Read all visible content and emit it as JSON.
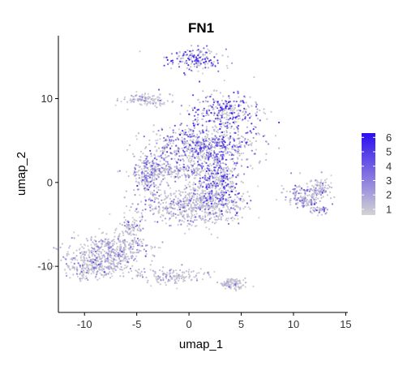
{
  "chart_data": {
    "type": "scatter",
    "title": "FN1",
    "xlabel": "umap_1",
    "ylabel": "umap_2",
    "xlim": [
      -12.5,
      15.2
    ],
    "ylim": [
      -15.5,
      17.5
    ],
    "x_ticks": [
      -10,
      -5,
      0,
      5,
      10,
      15
    ],
    "y_ticks": [
      -10,
      0,
      10
    ],
    "x_tick_labels": [
      "-10",
      "-5",
      "0",
      "5",
      "10",
      "15"
    ],
    "y_tick_labels": [
      "-10",
      "0",
      "10"
    ],
    "grid": false,
    "legend": {
      "position": "right",
      "min": 0.6,
      "max": 6.3,
      "ticks": [
        1,
        2,
        3,
        4,
        5,
        6
      ],
      "tick_labels": [
        "1",
        "2",
        "3",
        "4",
        "5",
        "6"
      ],
      "low_color": "#d3d3d3",
      "high_color": "#2b0ef0"
    },
    "clusters": [
      {
        "cx": 0.6,
        "cy": 14.7,
        "rx": 2.3,
        "ry": 1.2,
        "n": 180,
        "expr": 4.4
      },
      {
        "cx": -4.2,
        "cy": 9.9,
        "rx": 2.2,
        "ry": 0.6,
        "n": 120,
        "expr": 1.1
      },
      {
        "cx": 3.5,
        "cy": 8.4,
        "rx": 3.0,
        "ry": 2.2,
        "n": 320,
        "expr": 4.2
      },
      {
        "cx": 1.5,
        "cy": 4.2,
        "rx": 4.5,
        "ry": 2.4,
        "n": 700,
        "expr": 3.6
      },
      {
        "cx": -3.8,
        "cy": 0.7,
        "rx": 1.6,
        "ry": 2.6,
        "n": 260,
        "expr": 2.8
      },
      {
        "cx": 2.8,
        "cy": -0.2,
        "rx": 2.0,
        "ry": 3.0,
        "n": 380,
        "expr": 3.8
      },
      {
        "cx": 0.5,
        "cy": -2.8,
        "rx": 4.4,
        "ry": 1.9,
        "n": 600,
        "expr": 1.7
      },
      {
        "cx": -1.0,
        "cy": 1.4,
        "rx": 3.4,
        "ry": 0.8,
        "n": 160,
        "expr": 1.3
      },
      {
        "cx": -7.5,
        "cy": -8.0,
        "rx": 3.5,
        "ry": 1.6,
        "n": 380,
        "expr": 1.8
      },
      {
        "cx": -9.0,
        "cy": -10.1,
        "rx": 2.8,
        "ry": 1.3,
        "n": 300,
        "expr": 1.5
      },
      {
        "cx": -5.5,
        "cy": -5.4,
        "rx": 1.0,
        "ry": 1.4,
        "n": 80,
        "expr": 1.4
      },
      {
        "cx": -1.5,
        "cy": -11.2,
        "rx": 3.5,
        "ry": 0.9,
        "n": 150,
        "expr": 1.2
      },
      {
        "cx": 4.3,
        "cy": -12.1,
        "rx": 1.2,
        "ry": 0.7,
        "n": 110,
        "expr": 1.1
      },
      {
        "cx": 11.0,
        "cy": -1.8,
        "rx": 1.6,
        "ry": 1.4,
        "n": 160,
        "expr": 2.3
      },
      {
        "cx": 12.6,
        "cy": -0.6,
        "rx": 0.9,
        "ry": 1.0,
        "n": 90,
        "expr": 1.8
      },
      {
        "cx": 12.4,
        "cy": -3.3,
        "rx": 0.9,
        "ry": 0.5,
        "n": 40,
        "expr": 2.6
      }
    ]
  }
}
